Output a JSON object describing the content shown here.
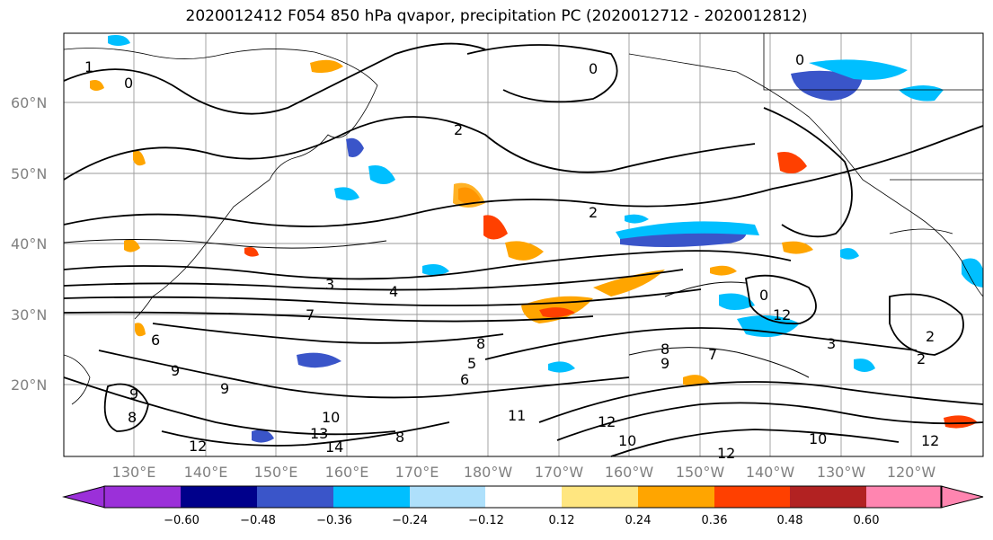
{
  "title": "2020012412 F054 850 hPa qvapor, precipitation PC (2020012712 - 2020012812)",
  "map": {
    "lat_labels": [
      "60°N",
      "50°N",
      "40°N",
      "30°N",
      "20°N"
    ],
    "lon_labels": [
      "130°E",
      "140°E",
      "150°E",
      "160°E",
      "170°E",
      "180°W",
      "170°W",
      "160°W",
      "150°W",
      "140°W",
      "130°W",
      "120°W"
    ],
    "contour_labels": [
      "1",
      "0",
      "2",
      "2",
      "0",
      "0",
      "0",
      "3",
      "4",
      "7",
      "6",
      "9",
      "9",
      "9",
      "8",
      "10",
      "13",
      "14",
      "12",
      "8",
      "6",
      "5",
      "8",
      "11",
      "12",
      "10",
      "12",
      "8",
      "7",
      "9",
      "12",
      "3",
      "2",
      "2",
      "10",
      "12"
    ]
  },
  "colorbar": {
    "colors": [
      "#9b30d9",
      "#00008b",
      "#3a55c9",
      "#00bfff",
      "#aee0fb",
      "#ffffff",
      "#ffe680",
      "#ffa500",
      "#ff4000",
      "#b22222",
      "#ff85b0"
    ],
    "tick_labels": [
      "−0.60",
      "−0.48",
      "−0.36",
      "−0.24",
      "−0.12",
      "0.12",
      "0.24",
      "0.36",
      "0.48",
      "0.60"
    ]
  }
}
